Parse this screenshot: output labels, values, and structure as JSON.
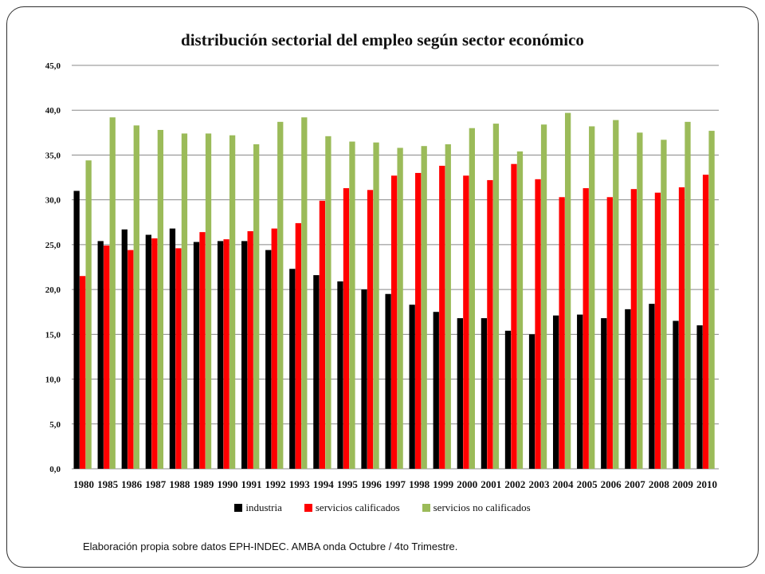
{
  "chart_data": {
    "type": "bar",
    "title": "distribución sectorial del empleo según sector económico",
    "xlabel": "",
    "ylabel": "",
    "ylim": [
      0,
      45
    ],
    "yticks": [
      "0,0",
      "5,0",
      "10,0",
      "15,0",
      "20,0",
      "25,0",
      "30,0",
      "35,0",
      "40,0",
      "45,0"
    ],
    "grid": true,
    "legend_position": "bottom",
    "categories": [
      "1980",
      "1985",
      "1986",
      "1987",
      "1988",
      "1989",
      "1990",
      "1991",
      "1992",
      "1993",
      "1994",
      "1995",
      "1996",
      "1997",
      "1998",
      "1999",
      "2000",
      "2001",
      "2002",
      "2003",
      "2004",
      "2005",
      "2006",
      "2007",
      "2008",
      "2009",
      "2010"
    ],
    "series": [
      {
        "name": "industria",
        "color": "#000000",
        "values": [
          31.0,
          25.4,
          26.7,
          26.1,
          26.8,
          25.3,
          25.4,
          25.4,
          24.4,
          22.3,
          21.6,
          20.9,
          20.0,
          19.5,
          18.3,
          17.5,
          16.8,
          16.8,
          15.4,
          15.0,
          17.1,
          17.2,
          16.8,
          17.8,
          18.4,
          16.5,
          16.0
        ]
      },
      {
        "name": "servicios calificados",
        "color": "#ff0000",
        "values": [
          21.5,
          24.9,
          24.4,
          25.7,
          24.6,
          26.4,
          25.6,
          26.5,
          26.8,
          27.4,
          29.9,
          31.3,
          31.1,
          32.7,
          33.0,
          33.8,
          32.7,
          32.2,
          34.0,
          32.3,
          30.3,
          31.3,
          30.3,
          31.2,
          30.8,
          31.4,
          32.8
        ]
      },
      {
        "name": "servicios no calificados",
        "color": "#9bbb59",
        "values": [
          34.4,
          39.2,
          38.3,
          37.8,
          37.4,
          37.4,
          37.2,
          36.2,
          38.7,
          39.2,
          37.1,
          36.5,
          36.4,
          35.8,
          36.0,
          36.2,
          38.0,
          38.5,
          35.4,
          38.4,
          39.7,
          38.2,
          38.9,
          37.5,
          36.7,
          38.7,
          37.7
        ]
      }
    ]
  },
  "footnote": "Elaboración propia sobre datos EPH-INDEC. AMBA onda Octubre / 4to Trimestre."
}
